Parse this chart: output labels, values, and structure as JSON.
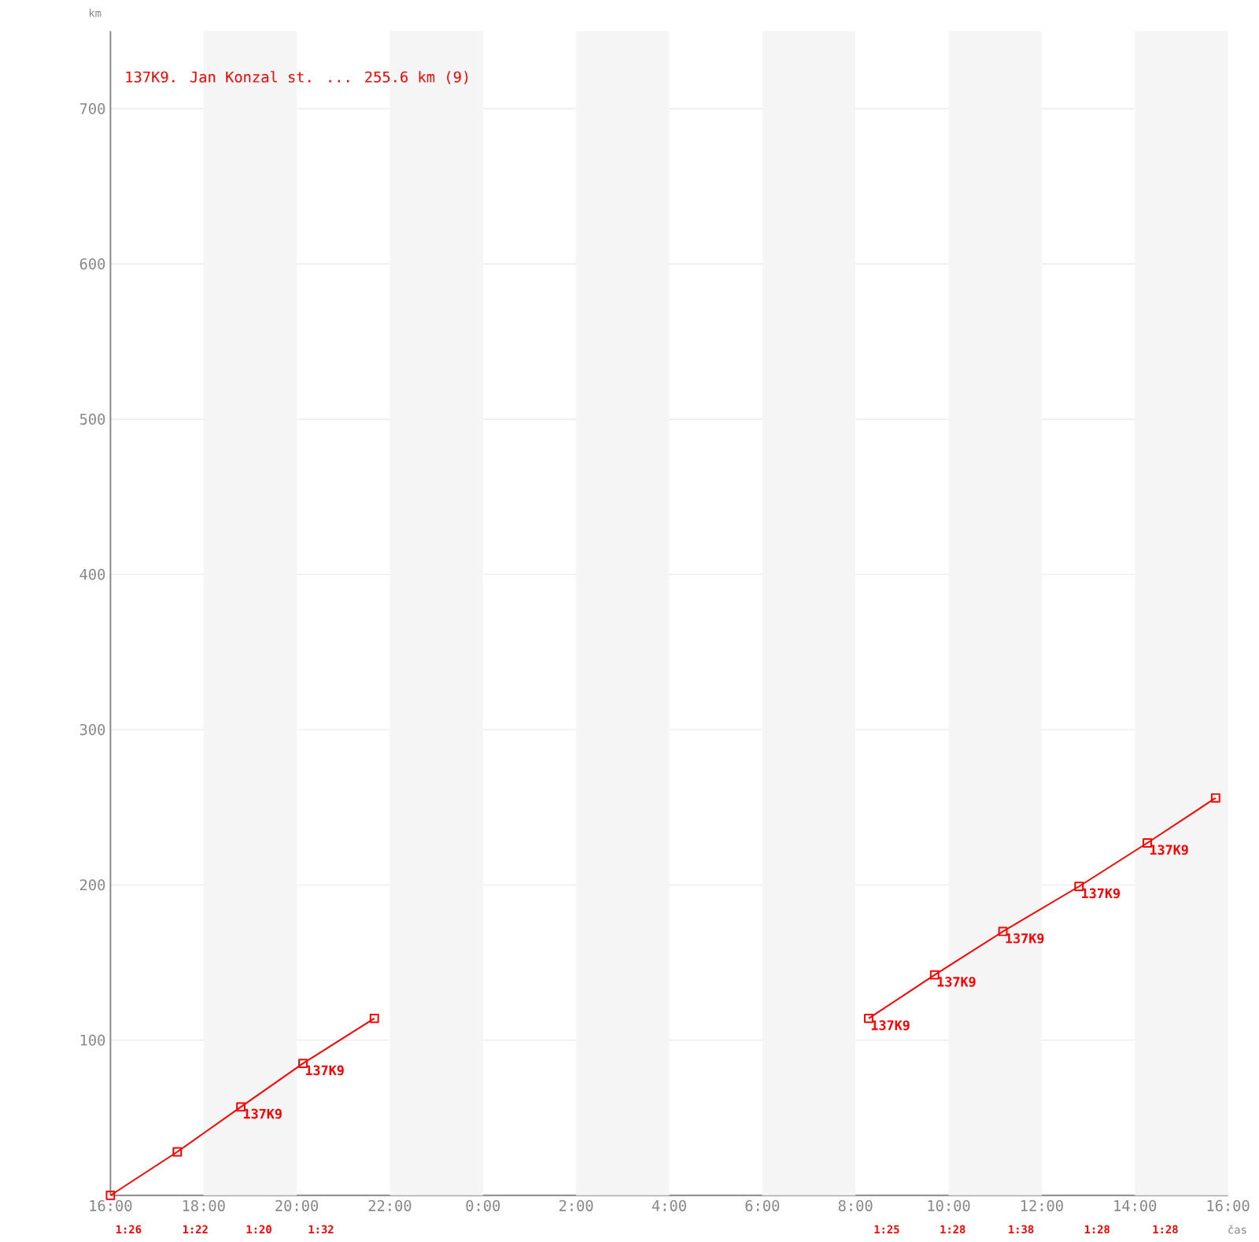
{
  "chart_data": {
    "type": "line",
    "title": "137K9. Jan Konzal st. ... 255.6 km (9)",
    "xlabel": "čas",
    "ylabel": "km",
    "xlim": [
      "2000-01-01T16:00",
      "2000-01-02T16:00"
    ],
    "ylim": [
      0,
      750
    ],
    "xticks": [
      {
        "value": "2000-01-01T16:00",
        "label": "16:00"
      },
      {
        "value": "2000-01-01T18:00",
        "label": "18:00"
      },
      {
        "value": "2000-01-01T20:00",
        "label": "20:00"
      },
      {
        "value": "2000-01-01T22:00",
        "label": "22:00"
      },
      {
        "value": "2000-01-02T00:00",
        "label": "0:00"
      },
      {
        "value": "2000-01-02T02:00",
        "label": "2:00"
      },
      {
        "value": "2000-01-02T04:00",
        "label": "4:00"
      },
      {
        "value": "2000-01-02T06:00",
        "label": "6:00"
      },
      {
        "value": "2000-01-02T08:00",
        "label": "8:00"
      },
      {
        "value": "2000-01-02T10:00",
        "label": "10:00"
      },
      {
        "value": "2000-01-02T12:00",
        "label": "12:00"
      },
      {
        "value": "2000-01-02T14:00",
        "label": "14:00"
      },
      {
        "value": "2000-01-02T16:00",
        "label": "16:00"
      }
    ],
    "yticks": [
      100,
      200,
      300,
      400,
      500,
      600,
      700
    ],
    "grid": "y",
    "marker": "square",
    "bands": [
      {
        "axis": "x",
        "from": "2000-01-01T18:00",
        "to": "2000-01-01T20:00",
        "color": "#f5f5f5"
      },
      {
        "axis": "x",
        "from": "2000-01-01T22:00",
        "to": "2000-01-02T00:00",
        "color": "#f5f5f5"
      },
      {
        "axis": "x",
        "from": "2000-01-02T02:00",
        "to": "2000-01-02T04:00",
        "color": "#f5f5f5"
      },
      {
        "axis": "x",
        "from": "2000-01-02T06:00",
        "to": "2000-01-02T08:00",
        "color": "#f5f5f5"
      },
      {
        "axis": "x",
        "from": "2000-01-02T10:00",
        "to": "2000-01-02T12:00",
        "color": "#f5f5f5"
      },
      {
        "axis": "x",
        "from": "2000-01-02T14:00",
        "to": "2000-01-02T16:00",
        "color": "#f5f5f5"
      }
    ],
    "series": [
      {
        "color": "#ff0000",
        "x": [
          "2000-01-01T16:00",
          "2000-01-01T17:26",
          "2000-01-01T18:48",
          "2000-01-01T20:08",
          "2000-01-01T21:40"
        ],
        "values": [
          0,
          28,
          57,
          85,
          114
        ]
      },
      {
        "color": "#ff0000",
        "x": [
          "2000-01-02T08:17",
          "2000-01-02T09:42",
          "2000-01-02T11:10",
          "2000-01-02T12:48",
          "2000-01-02T14:16",
          "2000-01-02T15:44"
        ],
        "values": [
          114,
          142,
          170,
          199,
          227,
          256
        ]
      }
    ],
    "annotations": [
      {
        "text": "137K9",
        "x": "2000-01-01T18:48",
        "y": 57
      },
      {
        "text": "137K9",
        "x": "2000-01-01T20:08",
        "y": 85
      },
      {
        "text": "137K9",
        "x": "2000-01-02T08:17",
        "y": 114
      },
      {
        "text": "137K9",
        "x": "2000-01-02T09:42",
        "y": 142
      },
      {
        "text": "137K9",
        "x": "2000-01-02T11:10",
        "y": 170
      },
      {
        "text": "137K9",
        "x": "2000-01-02T12:48",
        "y": 199
      },
      {
        "text": "137K9",
        "x": "2000-01-02T14:16",
        "y": 227
      },
      "1:26",
      "1:22",
      "1:20",
      "1:32",
      "1:25",
      "1:28",
      "1:38",
      "1:28",
      "1:28"
    ]
  }
}
